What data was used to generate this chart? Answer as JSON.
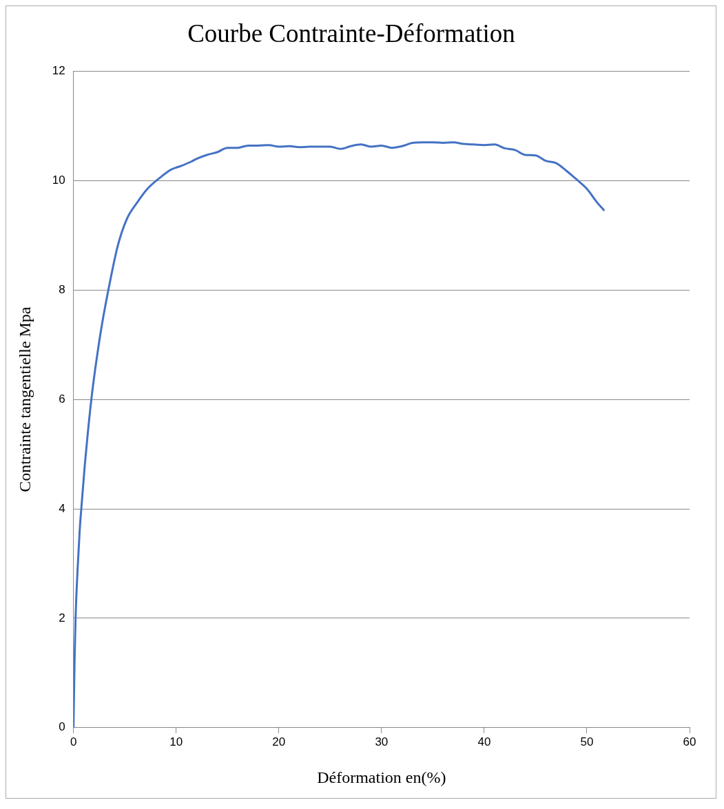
{
  "chart_data": {
    "type": "line",
    "title": "Courbe Contrainte-Déformation",
    "xlabel": "Déformation en(%)",
    "ylabel": "Contrainte tangentielle Mpa",
    "series": [
      {
        "color": "#4472c4",
        "x": [
          0,
          0.1,
          0.2,
          0.4,
          0.6,
          0.8,
          1.1,
          1.4,
          1.8,
          2.3,
          2.8,
          3.5,
          4.3,
          5.2,
          6.2,
          7.2,
          8.4,
          9.5,
          10.5,
          11.5,
          12,
          13,
          14,
          15,
          16,
          17,
          18,
          19,
          20,
          21,
          22,
          23,
          24,
          25,
          26,
          27,
          28,
          29,
          30,
          31,
          32,
          33,
          34,
          35,
          36,
          37,
          38,
          39,
          40,
          41,
          42,
          43,
          44,
          45,
          46,
          47,
          48,
          49,
          50,
          51,
          51.7
        ],
        "values": [
          0,
          1.2,
          2,
          2.9,
          3.6,
          4.1,
          4.8,
          5.4,
          6.1,
          6.8,
          7.4,
          8.1,
          8.8,
          9.3,
          9.6,
          9.85,
          10.05,
          10.2,
          10.27,
          10.35,
          10.4,
          10.47,
          10.52,
          10.6,
          10.6,
          10.64,
          10.64,
          10.65,
          10.62,
          10.63,
          10.61,
          10.62,
          10.62,
          10.62,
          10.58,
          10.63,
          10.66,
          10.62,
          10.64,
          10.6,
          10.63,
          10.69,
          10.7,
          10.7,
          10.69,
          10.7,
          10.67,
          10.66,
          10.65,
          10.66,
          10.59,
          10.56,
          10.47,
          10.46,
          10.36,
          10.32,
          10.18,
          10.02,
          9.85,
          9.6,
          9.45
        ]
      }
    ],
    "xlim": [
      0,
      60
    ],
    "xticks": [
      0,
      10,
      20,
      30,
      40,
      50,
      60
    ],
    "ylim": [
      0,
      12
    ],
    "yticks": [
      0,
      2,
      4,
      6,
      8,
      10,
      12
    ],
    "grid": "y",
    "legend": false,
    "marker": "none",
    "line_style": "solid"
  }
}
